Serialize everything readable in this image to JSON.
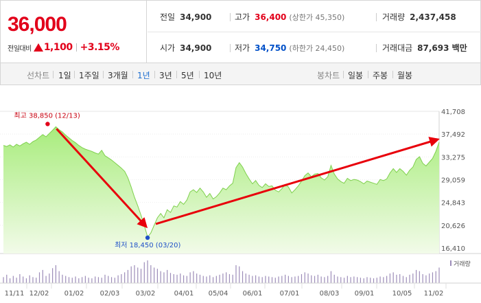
{
  "quote": {
    "price": "36,000",
    "change_label": "전일대비",
    "change_value": "1,100",
    "change_pct": "+3.15%",
    "prev_close_label": "전일",
    "prev_close": "34,900",
    "high_label": "고가",
    "high": "36,400",
    "upper_limit": "(상한가 45,350)",
    "volume_label": "거래량",
    "volume": "2,437,458",
    "open_label": "시가",
    "open": "34,900",
    "low_label": "저가",
    "low": "34,750",
    "lower_limit": "(하한가 24,450)",
    "amount_label": "거래대금",
    "amount": "87,693 백만",
    "colors": {
      "up": "#e2001a",
      "down": "#0050c8"
    }
  },
  "tabs": {
    "line_chart_label": "선차트",
    "periods": [
      "1일",
      "1주일",
      "3개월",
      "1년",
      "3년",
      "5년",
      "10년"
    ],
    "active_period": "1년",
    "candle_chart_label": "봉차트",
    "candle_periods": [
      "일봉",
      "주봉",
      "월봉"
    ]
  },
  "chart_data": {
    "type": "area",
    "x_ticks": [
      "11/11",
      "12/02",
      "01/02",
      "02/03",
      "03/02",
      "04/01",
      "05/04",
      "06/01",
      "07/01",
      "08/03",
      "09/01",
      "10/05",
      "11/02"
    ],
    "y_ticks": [
      "41,708",
      "37,492",
      "33,275",
      "29,059",
      "24,843",
      "20,626",
      "16,410"
    ],
    "ylim": [
      16410,
      41708
    ],
    "high_label": "최고 38,850 (12/13)",
    "high_value": 38850,
    "low_label": "최저 18,450 (03/20)",
    "low_value": 18450,
    "volume_label": "거래량",
    "colors": {
      "area_top": "#a8ec7c",
      "area_bottom": "#f2fbe9",
      "line": "#7fd04e",
      "arrow": "#e8000b",
      "volume": "#9c8cb8"
    },
    "prices": [
      35400,
      35200,
      35500,
      35100,
      35600,
      35300,
      35700,
      36000,
      35600,
      36100,
      36400,
      36900,
      37400,
      37000,
      37600,
      38200,
      38850,
      38300,
      37900,
      37300,
      36800,
      36300,
      35900,
      35400,
      35000,
      34700,
      34500,
      34300,
      34000,
      33800,
      34500,
      33500,
      33100,
      32700,
      32200,
      31700,
      31200,
      30600,
      29400,
      27700,
      25800,
      24200,
      22500,
      20600,
      18450,
      19200,
      20600,
      22000,
      22800,
      22000,
      23500,
      23000,
      24200,
      24000,
      25000,
      24500,
      25300,
      26800,
      27200,
      26700,
      27500,
      26800,
      25800,
      26500,
      25500,
      25900,
      26600,
      27500,
      27200,
      27900,
      28400,
      31300,
      32200,
      31400,
      30200,
      29200,
      28300,
      28900,
      28000,
      27600,
      28300,
      27800,
      27900,
      27100,
      26800,
      27400,
      28200,
      27700,
      26600,
      27200,
      27900,
      28800,
      29800,
      30300,
      29600,
      30100,
      30200,
      29400,
      29000,
      29600,
      31700,
      30100,
      29200,
      28700,
      28400,
      29300,
      28900,
      29100,
      29000,
      28700,
      28300,
      28800,
      28600,
      28400,
      28200,
      29100,
      28900,
      29200,
      30300,
      31100,
      30400,
      31100,
      30600,
      29900,
      30800,
      31400,
      32800,
      33300,
      32100,
      31600,
      32300,
      33000,
      34300,
      36000
    ],
    "volumes": [
      10,
      14,
      8,
      12,
      9,
      15,
      11,
      8,
      13,
      10,
      9,
      18,
      22,
      12,
      16,
      25,
      30,
      20,
      14,
      12,
      10,
      9,
      11,
      8,
      10,
      12,
      9,
      8,
      11,
      10,
      9,
      14,
      12,
      10,
      9,
      13,
      15,
      18,
      22,
      28,
      30,
      26,
      24,
      35,
      38,
      30,
      26,
      24,
      20,
      18,
      22,
      17,
      15,
      14,
      16,
      13,
      12,
      18,
      20,
      16,
      14,
      12,
      11,
      13,
      10,
      12,
      14,
      16,
      18,
      15,
      14,
      30,
      28,
      20,
      16,
      14,
      12,
      13,
      11,
      10,
      12,
      11,
      10,
      9,
      11,
      12,
      14,
      12,
      10,
      11,
      12,
      15,
      18,
      16,
      13,
      12,
      14,
      11,
      10,
      12,
      20,
      14,
      11,
      10,
      9,
      12,
      10,
      11,
      10,
      9,
      8,
      10,
      9,
      8,
      9,
      11,
      10,
      12,
      16,
      18,
      14,
      15,
      12,
      10,
      14,
      16,
      22,
      20,
      15,
      13,
      16,
      18,
      20,
      26
    ]
  }
}
